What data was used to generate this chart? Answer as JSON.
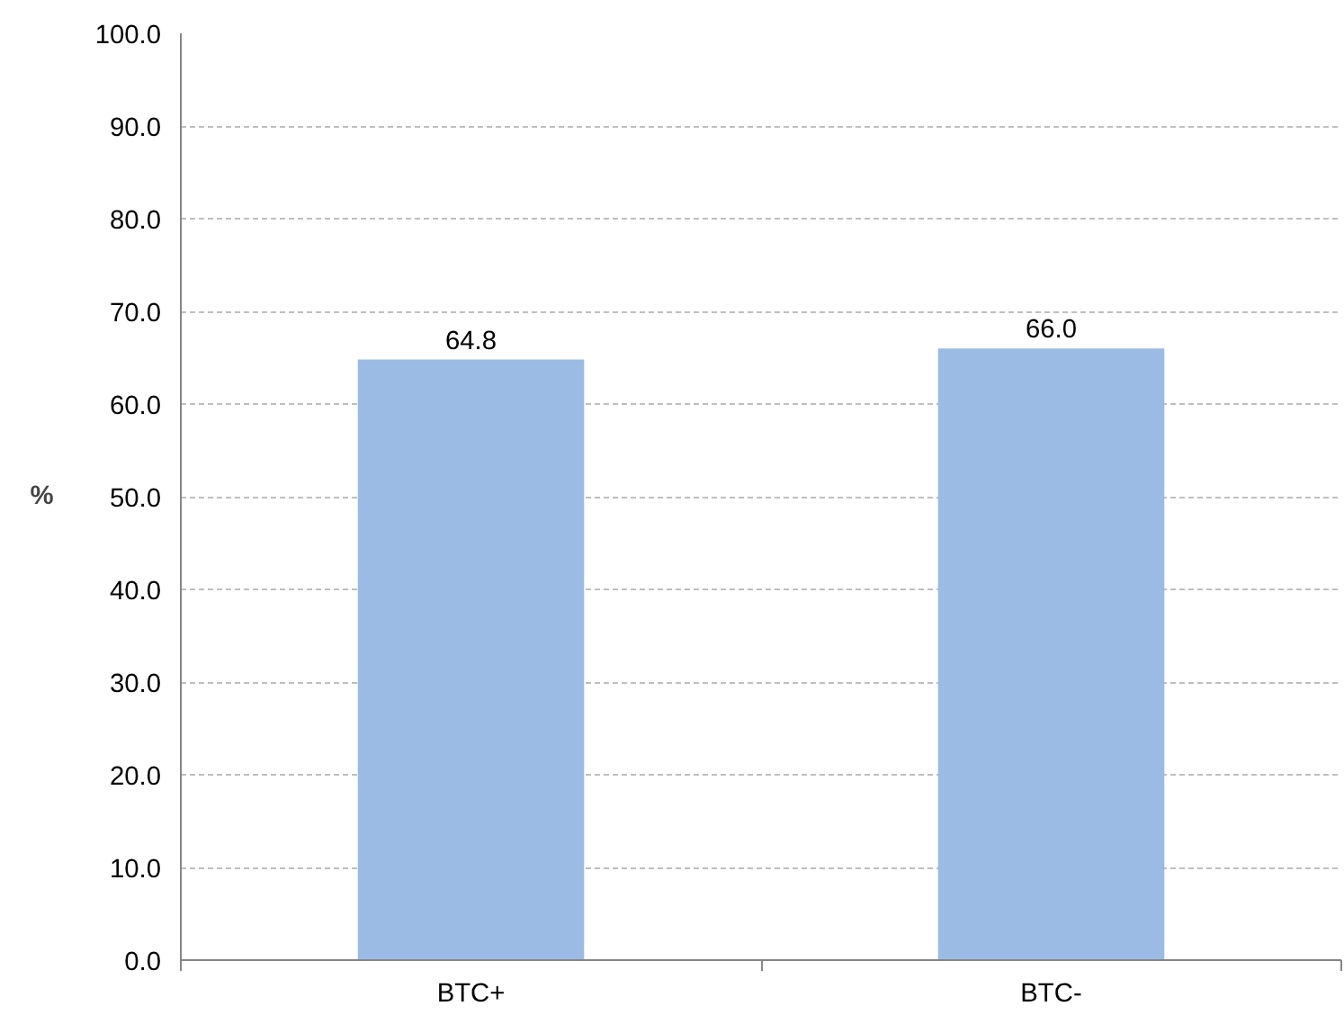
{
  "chart_data": {
    "type": "bar",
    "categories": [
      "BTC+",
      "BTC-"
    ],
    "values": [
      64.8,
      66.0
    ],
    "value_labels": [
      "64.8",
      "66.0"
    ],
    "color": "#9bbbe4",
    "ylabel": "%",
    "ylim": [
      0,
      100
    ],
    "yticks": [
      {
        "value": 0,
        "label": "0.0"
      },
      {
        "value": 10,
        "label": "10.0"
      },
      {
        "value": 20,
        "label": "20.0"
      },
      {
        "value": 30,
        "label": "30.0"
      },
      {
        "value": 40,
        "label": "40.0"
      },
      {
        "value": 50,
        "label": "50.0"
      },
      {
        "value": 60,
        "label": "60.0"
      },
      {
        "value": 70,
        "label": "70.0"
      },
      {
        "value": 80,
        "label": "80.0"
      },
      {
        "value": 90,
        "label": "90.0"
      },
      {
        "value": 100,
        "label": "100.0"
      }
    ],
    "grid": "y"
  }
}
